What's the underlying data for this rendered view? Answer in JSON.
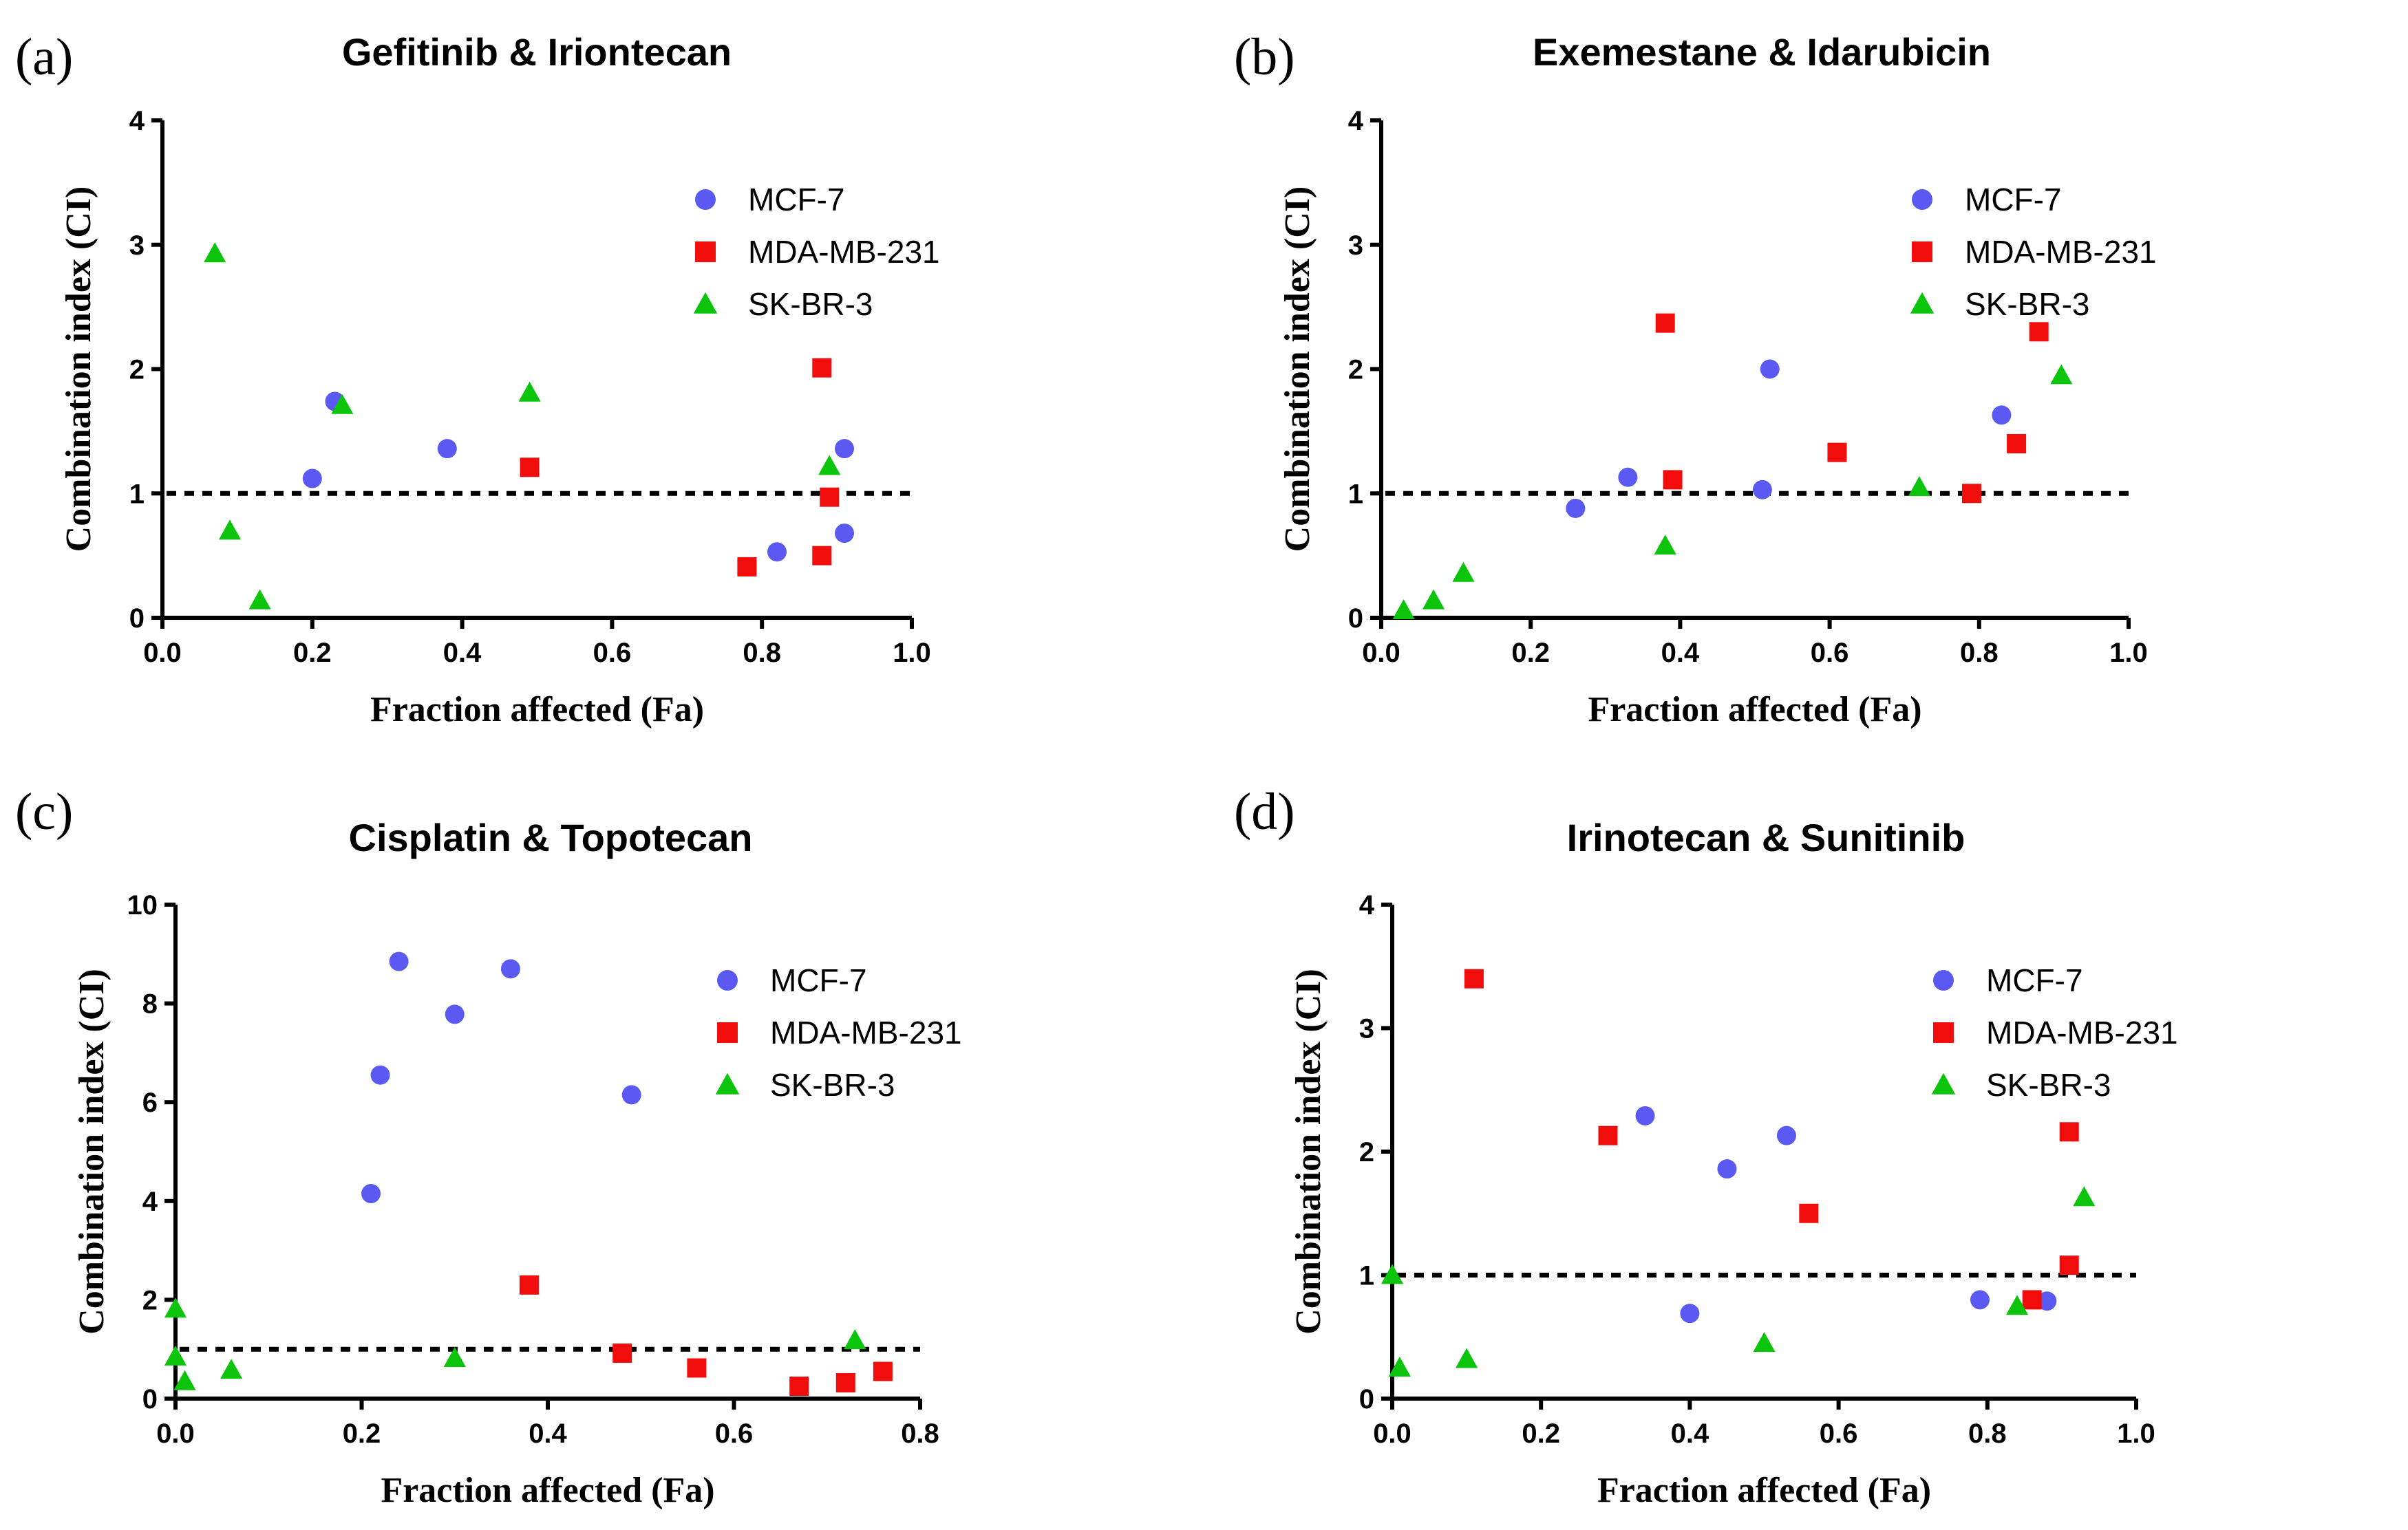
{
  "colors": {
    "MCF-7": "#5a5af2",
    "MDA-MB-231": "#f20d0d",
    "SK-BR-3": "#0cc40c"
  },
  "marker_icons": {
    "MCF-7": "circle",
    "MDA-MB-231": "square",
    "SK-BR-3": "triangle"
  },
  "chart_data": [
    {
      "type": "scatter",
      "panel": "(a)",
      "title": "Gefitinib & Iriontecan",
      "xlabel": "Fraction affected (Fa)",
      "ylabel": "Combination index (CI)",
      "xlim": [
        0,
        1.0
      ],
      "ylim": [
        0,
        4
      ],
      "xticks": [
        "0.0",
        "0.2",
        "0.4",
        "0.6",
        "0.8",
        "1.0"
      ],
      "yticks": [
        "0",
        "1",
        "2",
        "3",
        "4"
      ],
      "reference_line": 1,
      "legend_position": "top-right",
      "series": [
        {
          "name": "MCF-7",
          "points": [
            [
              0.2,
              1.12
            ],
            [
              0.23,
              1.74
            ],
            [
              0.38,
              1.36
            ],
            [
              0.82,
              0.53
            ],
            [
              0.91,
              1.36
            ],
            [
              0.91,
              0.68
            ]
          ]
        },
        {
          "name": "MDA-MB-231",
          "points": [
            [
              0.49,
              1.21
            ],
            [
              0.78,
              0.41
            ],
            [
              0.88,
              2.01
            ],
            [
              0.88,
              0.5
            ],
            [
              0.89,
              0.97
            ]
          ]
        },
        {
          "name": "SK-BR-3",
          "points": [
            [
              0.07,
              2.93
            ],
            [
              0.09,
              0.7
            ],
            [
              0.13,
              0.14
            ],
            [
              0.24,
              1.71
            ],
            [
              0.49,
              1.81
            ],
            [
              0.89,
              1.22
            ]
          ]
        }
      ]
    },
    {
      "type": "scatter",
      "panel": "(b)",
      "title": "Exemestane & Idarubicin",
      "xlabel": "Fraction affected (Fa)",
      "ylabel": "Combination index (CI)",
      "xlim": [
        0,
        1.0
      ],
      "ylim": [
        0,
        4
      ],
      "xticks": [
        "0.0",
        "0.2",
        "0.4",
        "0.6",
        "0.8",
        "1.0"
      ],
      "yticks": [
        "0",
        "1",
        "2",
        "3",
        "4"
      ],
      "reference_line": 1,
      "legend_position": "top-right",
      "series": [
        {
          "name": "MCF-7",
          "points": [
            [
              0.26,
              0.88
            ],
            [
              0.33,
              1.13
            ],
            [
              0.51,
              1.03
            ],
            [
              0.52,
              2.0
            ],
            [
              0.83,
              1.63
            ]
          ]
        },
        {
          "name": "MDA-MB-231",
          "points": [
            [
              0.38,
              2.37
            ],
            [
              0.39,
              1.11
            ],
            [
              0.61,
              1.33
            ],
            [
              0.79,
              1.0
            ],
            [
              0.85,
              1.4
            ],
            [
              0.88,
              2.3
            ]
          ]
        },
        {
          "name": "SK-BR-3",
          "points": [
            [
              0.03,
              0.06
            ],
            [
              0.07,
              0.14
            ],
            [
              0.11,
              0.36
            ],
            [
              0.38,
              0.58
            ],
            [
              0.72,
              1.05
            ],
            [
              0.91,
              1.95
            ]
          ]
        }
      ]
    },
    {
      "type": "scatter",
      "panel": "(c)",
      "title": "Cisplatin & Topotecan",
      "xlabel": "Fraction affected (Fa)",
      "ylabel": "Combination index (CI)",
      "xlim": [
        0,
        0.8
      ],
      "ylim": [
        0,
        10
      ],
      "xticks": [
        "0.0",
        "0.2",
        "0.4",
        "0.6",
        "0.8"
      ],
      "yticks": [
        "0",
        "2",
        "4",
        "6",
        "8",
        "10"
      ],
      "reference_line": 1,
      "legend_position": "top-right",
      "series": [
        {
          "name": "MCF-7",
          "points": [
            [
              0.21,
              4.15
            ],
            [
              0.22,
              6.55
            ],
            [
              0.24,
              8.85
            ],
            [
              0.3,
              7.78
            ],
            [
              0.36,
              8.7
            ],
            [
              0.49,
              6.15
            ]
          ]
        },
        {
          "name": "MDA-MB-231",
          "points": [
            [
              0.38,
              2.3
            ],
            [
              0.48,
              0.92
            ],
            [
              0.56,
              0.62
            ],
            [
              0.67,
              0.25
            ],
            [
              0.72,
              0.32
            ],
            [
              0.76,
              0.55
            ]
          ]
        },
        {
          "name": "SK-BR-3",
          "points": [
            [
              0.0,
              1.82
            ],
            [
              0.0,
              0.85
            ],
            [
              0.01,
              0.35
            ],
            [
              0.06,
              0.58
            ],
            [
              0.3,
              0.82
            ],
            [
              0.73,
              1.18
            ]
          ]
        }
      ]
    },
    {
      "type": "scatter",
      "panel": "(d)",
      "title": "Irinotecan & Sunitinib",
      "xlabel": "Fraction affected (Fa)",
      "ylabel": "Combination index (CI)",
      "xlim": [
        0,
        1.0
      ],
      "ylim": [
        0,
        4
      ],
      "xticks": [
        "0.0",
        "0.2",
        "0.4",
        "0.6",
        "0.8",
        "1.0"
      ],
      "yticks": [
        "0",
        "1",
        "2",
        "3",
        "4"
      ],
      "reference_line": 1,
      "legend_position": "top-right",
      "series": [
        {
          "name": "MCF-7",
          "points": [
            [
              0.34,
              2.29
            ],
            [
              0.4,
              0.69
            ],
            [
              0.45,
              1.86
            ],
            [
              0.53,
              2.13
            ],
            [
              0.79,
              0.8
            ],
            [
              0.88,
              0.79
            ]
          ]
        },
        {
          "name": "MDA-MB-231",
          "points": [
            [
              0.11,
              3.4
            ],
            [
              0.29,
              2.13
            ],
            [
              0.56,
              1.5
            ],
            [
              0.86,
              0.8
            ],
            [
              0.91,
              2.16
            ],
            [
              0.91,
              1.08
            ]
          ]
        },
        {
          "name": "SK-BR-3",
          "points": [
            [
              0.0,
              1.0
            ],
            [
              0.01,
              0.25
            ],
            [
              0.1,
              0.32
            ],
            [
              0.5,
              0.45
            ],
            [
              0.84,
              0.75
            ],
            [
              0.93,
              1.63
            ]
          ]
        }
      ]
    }
  ]
}
